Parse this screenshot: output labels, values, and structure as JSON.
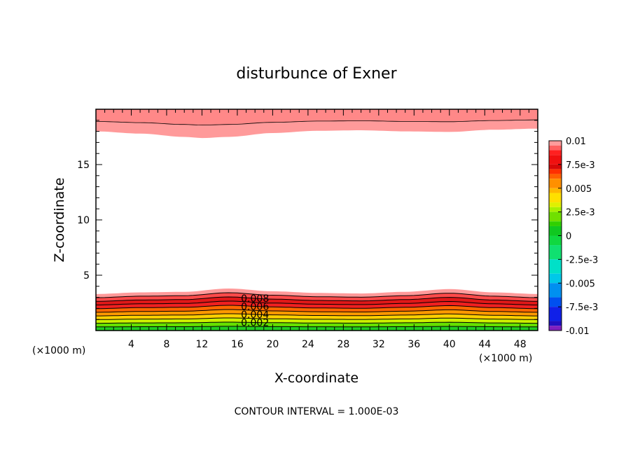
{
  "chart_data": {
    "type": "contour",
    "title": "disturbunce of Exner",
    "xlabel": "X-coordinate",
    "ylabel": "Z-coordinate",
    "x_unit": "(×1000 m)",
    "y_unit": "(×1000 m)",
    "xlim": [
      0,
      50
    ],
    "ylim": [
      0,
      20
    ],
    "x_ticks": [
      4,
      8,
      12,
      16,
      20,
      24,
      28,
      32,
      36,
      40,
      44,
      48
    ],
    "y_ticks": [
      5,
      10,
      15
    ],
    "grid": false,
    "footer": "CONTOUR INTERVAL = 1.000E-03",
    "contour_interval": 0.001,
    "contour_labels": [
      "0.008",
      "0.006",
      "0.004",
      "0.002"
    ],
    "colorbar": {
      "ticks": [
        "0.01",
        "7.5e-3",
        "0.005",
        "2.5e-3",
        "0",
        "-2.5e-3",
        "-0.005",
        "-7.5e-3",
        "-0.01"
      ],
      "levels": [
        {
          "from": 0.0075,
          "to": 0.01,
          "color": "#ff9c9c"
        },
        {
          "from": 0.005,
          "to": 0.0075,
          "color": "#f01010"
        },
        {
          "from": 0.0025,
          "to": 0.005,
          "color": "#ff9000"
        },
        {
          "from": 0.0,
          "to": 0.0025,
          "color": "#a8f000"
        },
        {
          "from": -0.0025,
          "to": 0.0,
          "color": "#10d820"
        },
        {
          "from": -0.005,
          "to": -0.0025,
          "color": "#00e0c8"
        },
        {
          "from": -0.0075,
          "to": -0.005,
          "color": "#0090f0"
        },
        {
          "from": -0.01,
          "to": -0.0075,
          "color": "#1020e8"
        }
      ],
      "bottom_color": "#8020c0"
    },
    "bottom_layer_bands": [
      {
        "from": 0.0,
        "to": 0.001,
        "color": "#22cc22"
      },
      {
        "from": 0.001,
        "to": 0.002,
        "color": "#66e000"
      },
      {
        "from": 0.002,
        "to": 0.003,
        "color": "#ccf000"
      },
      {
        "from": 0.003,
        "to": 0.004,
        "color": "#ffd000"
      },
      {
        "from": 0.004,
        "to": 0.005,
        "color": "#ff9900"
      },
      {
        "from": 0.005,
        "to": 0.006,
        "color": "#ff6600"
      },
      {
        "from": 0.006,
        "to": 0.007,
        "color": "#f02020"
      },
      {
        "from": 0.007,
        "to": 0.008,
        "color": "#e01818"
      },
      {
        "from": 0.008,
        "to": 0.009,
        "color": "#ff4a4a"
      },
      {
        "from": 0.009,
        "to": 0.01,
        "color": "#ff9a9a"
      }
    ],
    "bottom_layer_height": [
      {
        "x": 0,
        "z": 3.3
      },
      {
        "x": 5,
        "z": 3.45
      },
      {
        "x": 10,
        "z": 3.5
      },
      {
        "x": 15,
        "z": 3.8
      },
      {
        "x": 20,
        "z": 3.55
      },
      {
        "x": 25,
        "z": 3.4
      },
      {
        "x": 30,
        "z": 3.35
      },
      {
        "x": 35,
        "z": 3.5
      },
      {
        "x": 40,
        "z": 3.75
      },
      {
        "x": 45,
        "z": 3.45
      },
      {
        "x": 50,
        "z": 3.3
      }
    ],
    "top_layer_bands": [
      {
        "from": 0.008,
        "to": 0.009,
        "color": "#ff9a9a"
      },
      {
        "from": 0.009,
        "to": 0.01,
        "color": "#ff8888"
      }
    ],
    "top_layer_base": [
      {
        "x": 0,
        "z": 18.0
      },
      {
        "x": 5,
        "z": 17.8
      },
      {
        "x": 10,
        "z": 17.5
      },
      {
        "x": 12,
        "z": 17.4
      },
      {
        "x": 15,
        "z": 17.5
      },
      {
        "x": 20,
        "z": 17.85
      },
      {
        "x": 25,
        "z": 18.05
      },
      {
        "x": 30,
        "z": 18.1
      },
      {
        "x": 35,
        "z": 18.0
      },
      {
        "x": 40,
        "z": 17.95
      },
      {
        "x": 45,
        "z": 18.15
      },
      {
        "x": 50,
        "z": 18.25
      }
    ]
  }
}
